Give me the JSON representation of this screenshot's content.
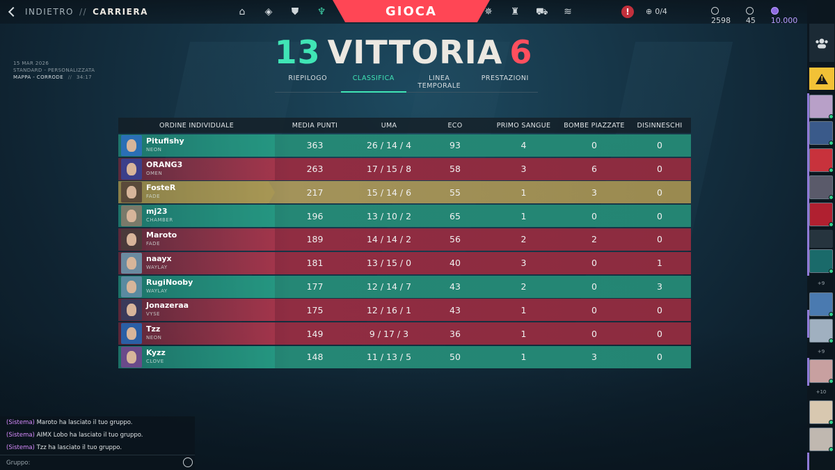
{
  "header": {
    "back_label": "INDIETRO",
    "separator": "//",
    "current_label": "CARRIERA",
    "play_label": "GIOCA",
    "nav_left": [
      "home-icon",
      "agents-icon",
      "collection-icon",
      "career-icon"
    ],
    "nav_right": [
      "battlepass-icon",
      "esports-icon",
      "store-icon",
      "rank-icon"
    ],
    "party_count": "0/4",
    "currency": {
      "vp": "2598",
      "rp": "45",
      "kc": "10.000"
    }
  },
  "match": {
    "date": "15 MAR 2026",
    "mode": "STANDARD - PERSONALIZZATA",
    "map": "MAPPA - CORRODE",
    "sep": "//",
    "duration": "34:17"
  },
  "score": {
    "won": "13",
    "result": "VITTORIA",
    "lost": "6"
  },
  "tabs": [
    {
      "label": "RIEPILOGO",
      "active": false
    },
    {
      "label": "CLASSIFICA",
      "active": true
    },
    {
      "label": "LINEA TEMPORALE",
      "active": false
    },
    {
      "label": "PRESTAZIONI",
      "active": false
    }
  ],
  "table": {
    "headers": [
      "ORDINE INDIVIDUALE",
      "MEDIA PUNTI",
      "UMA",
      "ECO",
      "PRIMO SANGUE",
      "BOMBE PIAZZATE",
      "DISINNESCHI"
    ],
    "rows": [
      {
        "name": "Pitufishy",
        "agent": "NEON",
        "team": "win",
        "acs": "363",
        "kda": "26 / 14 / 4",
        "eco": "93",
        "fb": "4",
        "plants": "0",
        "defuses": "0",
        "avatar_color": "#2a6fb5"
      },
      {
        "name": "ORANG3",
        "agent": "OMEN",
        "team": "loss",
        "acs": "263",
        "kda": "17 / 15 / 8",
        "eco": "58",
        "fb": "3",
        "plants": "6",
        "defuses": "0",
        "avatar_color": "#3b3f8a"
      },
      {
        "name": "FosteR",
        "agent": "FADE",
        "team": "me",
        "acs": "217",
        "kda": "15 / 14 / 6",
        "eco": "55",
        "fb": "1",
        "plants": "3",
        "defuses": "0",
        "avatar_color": "#5a4a3a"
      },
      {
        "name": "mj23",
        "agent": "CHAMBER",
        "team": "win",
        "acs": "196",
        "kda": "13 / 10 / 2",
        "eco": "65",
        "fb": "1",
        "plants": "0",
        "defuses": "0",
        "avatar_color": "#7a7a6a"
      },
      {
        "name": "Maroto",
        "agent": "FADE",
        "team": "loss",
        "acs": "189",
        "kda": "14 / 14 / 2",
        "eco": "56",
        "fb": "2",
        "plants": "2",
        "defuses": "0",
        "avatar_color": "#4a3a3a"
      },
      {
        "name": "naayx",
        "agent": "WAYLAY",
        "team": "loss",
        "acs": "181",
        "kda": "13 / 15 / 0",
        "eco": "40",
        "fb": "3",
        "plants": "0",
        "defuses": "1",
        "avatar_color": "#6a8aa0"
      },
      {
        "name": "RugiNooby",
        "agent": "WAYLAY",
        "team": "win",
        "acs": "177",
        "kda": "12 / 14 / 7",
        "eco": "43",
        "fb": "2",
        "plants": "0",
        "defuses": "3",
        "avatar_color": "#5a8aa0"
      },
      {
        "name": "Jonazeraa",
        "agent": "VYSE",
        "team": "loss",
        "acs": "175",
        "kda": "12 / 16 / 1",
        "eco": "43",
        "fb": "1",
        "plants": "0",
        "defuses": "0",
        "avatar_color": "#3a3a5a"
      },
      {
        "name": "Tzz",
        "agent": "NEON",
        "team": "loss",
        "acs": "149",
        "kda": "9 / 17 / 3",
        "eco": "36",
        "fb": "1",
        "plants": "0",
        "defuses": "0",
        "avatar_color": "#2a5fa5"
      },
      {
        "name": "Kyzz",
        "agent": "CLOVE",
        "team": "win",
        "acs": "148",
        "kda": "11 / 13 / 5",
        "eco": "50",
        "fb": "1",
        "plants": "3",
        "defuses": "0",
        "avatar_color": "#6a4a8a"
      }
    ]
  },
  "chat": {
    "prefix": "(Sistema)",
    "lines": [
      "Maroto ha lasciato il tuo gruppo.",
      "AIMX Lobo ha lasciato il tuo gruppo.",
      "Tzz ha lasciato il tuo gruppo."
    ],
    "input_label": "Gruppo:"
  },
  "sidebar": {
    "counts": [
      "+9",
      "+9",
      "+10"
    ],
    "friend_colors": [
      "#b8a0c8",
      "#3a5a8a",
      "#c8323c",
      "#5a5a6a",
      "#b02030",
      "#1a6a6a",
      "#4a7ab0",
      "#a0b0c0",
      "#c8a0a0",
      "#d8c8b0",
      "#c0b8b0",
      "#a89078"
    ]
  }
}
